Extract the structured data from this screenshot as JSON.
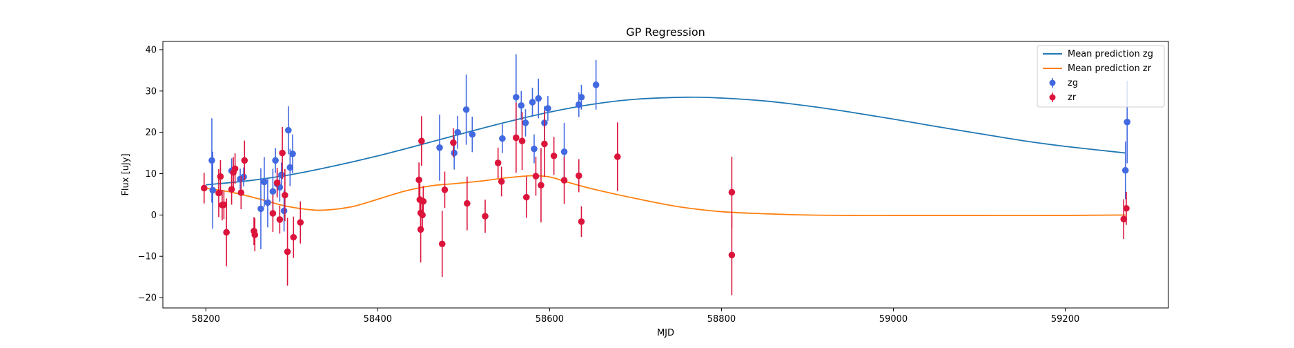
{
  "chart_data": {
    "type": "scatter",
    "title": "GP Regression",
    "xlabel": "MJD",
    "ylabel": "Flux [uJy]",
    "xlim": [
      58150,
      59320
    ],
    "ylim": [
      -22.5,
      42
    ],
    "xticks": [
      58200,
      58400,
      58600,
      58800,
      59000,
      59200
    ],
    "yticks": [
      -20,
      -10,
      0,
      10,
      20,
      30,
      40
    ],
    "legend_position": "top-right",
    "colors": {
      "zg_curve": "#1f77b4",
      "zr_curve": "#ff7f0e",
      "zg_points": "#4169e1",
      "zr_points": "#dc143c"
    },
    "series": [
      {
        "name": "Mean prediction zg",
        "kind": "line",
        "color": "#1f77b4",
        "x": [
          58200,
          58250,
          58300,
          58350,
          58400,
          58450,
          58500,
          58550,
          58600,
          58650,
          58700,
          58760,
          58800,
          58850,
          58900,
          58950,
          59000,
          59050,
          59100,
          59150,
          59200,
          59270
        ],
        "y": [
          7.3,
          8.3,
          9.8,
          11.9,
          14.3,
          17.0,
          19.8,
          22.5,
          24.9,
          26.8,
          28.0,
          28.5,
          28.3,
          27.6,
          26.4,
          24.9,
          23.2,
          21.4,
          19.7,
          18.0,
          16.6,
          15.0
        ]
      },
      {
        "name": "Mean prediction zr",
        "kind": "line",
        "color": "#ff7f0e",
        "x": [
          58200,
          58230,
          58260,
          58290,
          58320,
          58340,
          58370,
          58400,
          58430,
          58460,
          58490,
          58520,
          58550,
          58580,
          58600,
          58620,
          58650,
          58700,
          58750,
          58800,
          58850,
          58900,
          58950,
          59000,
          59100,
          59200,
          59270
        ],
        "y": [
          6.5,
          5.5,
          4.0,
          2.3,
          1.3,
          1.2,
          2.0,
          3.8,
          5.7,
          7.0,
          7.6,
          8.2,
          9.0,
          9.5,
          9.2,
          8.0,
          6.3,
          4.0,
          2.0,
          0.8,
          0.3,
          0.0,
          -0.1,
          -0.1,
          -0.1,
          -0.1,
          0.0
        ]
      },
      {
        "name": "zg",
        "kind": "errorbar",
        "color": "#4169e1",
        "points": [
          [
            58207,
            13.2,
            10.2
          ],
          [
            58208,
            6.0,
            9.3
          ],
          [
            58230,
            10.7,
            3.0
          ],
          [
            58240,
            8.7,
            2.5
          ],
          [
            58244,
            9.2,
            2.3
          ],
          [
            58264,
            1.5,
            9.8
          ],
          [
            58268,
            8.0,
            6.0
          ],
          [
            58272,
            3.0,
            6.0
          ],
          [
            58278,
            5.7,
            5.5
          ],
          [
            58281,
            13.2,
            3.0
          ],
          [
            58283,
            7.5,
            3.0
          ],
          [
            58286,
            6.7,
            3.5
          ],
          [
            58288,
            9.7,
            3.0
          ],
          [
            58291,
            1.0,
            5.0
          ],
          [
            58296,
            20.5,
            5.8
          ],
          [
            58298,
            11.5,
            4.5
          ],
          [
            58301,
            14.8,
            4.7
          ],
          [
            58472,
            16.3,
            8.0
          ],
          [
            58489,
            15.0,
            4.0
          ],
          [
            58493,
            20.0,
            4.0
          ],
          [
            58503,
            25.5,
            8.5
          ],
          [
            58510,
            19.5,
            4.3
          ],
          [
            58545,
            18.5,
            3.5
          ],
          [
            58561,
            28.5,
            10.4
          ],
          [
            58567,
            26.5,
            3.5
          ],
          [
            58572,
            22.3,
            3.3
          ],
          [
            58580,
            27.3,
            3.5
          ],
          [
            58582,
            16.0,
            3.5
          ],
          [
            58587,
            28.2,
            4.8
          ],
          [
            58594,
            22.3,
            4.0
          ],
          [
            58598,
            25.8,
            3.0
          ],
          [
            58617,
            15.3,
            7.0
          ],
          [
            58634,
            26.7,
            3.0
          ],
          [
            58637,
            28.5,
            3.0
          ],
          [
            58654,
            31.5,
            6.0
          ],
          [
            59270,
            10.8,
            7.0
          ],
          [
            59272,
            22.5,
            10.0
          ]
        ]
      },
      {
        "name": "zr",
        "kind": "errorbar",
        "color": "#dc143c",
        "points": [
          [
            58198,
            6.5,
            3.7
          ],
          [
            58215,
            5.3,
            5.8
          ],
          [
            58217,
            9.3,
            4.0
          ],
          [
            58219,
            2.4,
            3.7
          ],
          [
            58221,
            2.5,
            3.5
          ],
          [
            58224,
            -4.2,
            8.2
          ],
          [
            58230,
            6.2,
            3.7
          ],
          [
            58232,
            10.3,
            3.7
          ],
          [
            58234,
            11.2,
            3.7
          ],
          [
            58241,
            5.4,
            4.0
          ],
          [
            58245,
            13.2,
            4.8
          ],
          [
            58256,
            -3.9,
            3.4
          ],
          [
            58257,
            -4.8,
            4.0
          ],
          [
            58278,
            0.4,
            4.5
          ],
          [
            58283,
            7.8,
            3.6
          ],
          [
            58286,
            -1.1,
            3.4
          ],
          [
            58289,
            15.0,
            6.3
          ],
          [
            58292,
            4.8,
            6.3
          ],
          [
            58295,
            -8.9,
            8.2
          ],
          [
            58302,
            -5.4,
            5.0
          ],
          [
            58310,
            -1.8,
            5.1
          ],
          [
            58448,
            8.5,
            4.2
          ],
          [
            58449,
            3.7,
            4.0
          ],
          [
            58450,
            -3.5,
            8.0
          ],
          [
            58450,
            0.5,
            4.0
          ],
          [
            58451,
            17.9,
            6.0
          ],
          [
            58452,
            0.0,
            4.0
          ],
          [
            58453,
            3.3,
            3.7
          ],
          [
            58475,
            -7.0,
            8.0
          ],
          [
            58478,
            6.1,
            4.4
          ],
          [
            58488,
            17.5,
            3.5
          ],
          [
            58504,
            2.8,
            6.5
          ],
          [
            58525,
            -0.3,
            4.0
          ],
          [
            58540,
            12.6,
            3.7
          ],
          [
            58544,
            8.1,
            3.6
          ],
          [
            58561,
            18.7,
            8.5
          ],
          [
            58568,
            17.9,
            7.0
          ],
          [
            58573,
            4.3,
            5.0
          ],
          [
            58584,
            9.4,
            4.7
          ],
          [
            58590,
            7.2,
            9.0
          ],
          [
            58594,
            17.2,
            8.0
          ],
          [
            58605,
            14.3,
            4.6
          ],
          [
            58617,
            8.4,
            5.7
          ],
          [
            58634,
            9.5,
            4.0
          ],
          [
            58637,
            -1.6,
            3.7
          ],
          [
            58679,
            14.1,
            8.3
          ],
          [
            58812,
            5.5,
            8.6
          ],
          [
            58812,
            -9.7,
            9.7
          ],
          [
            59268,
            -1.0,
            4.8
          ],
          [
            59271,
            1.6,
            4.0
          ]
        ]
      }
    ]
  }
}
